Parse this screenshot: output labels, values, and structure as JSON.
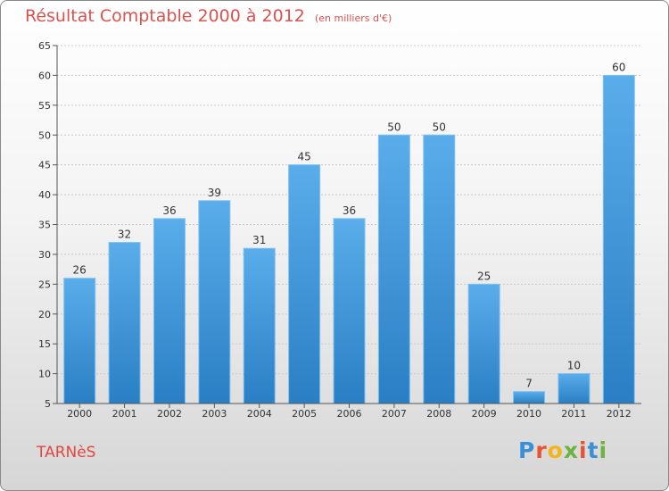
{
  "title": "Résultat Comptable 2000 à 2012",
  "subtitle": "(en milliers d'€)",
  "place": "TARNèS",
  "logo": {
    "text": "Proxiti",
    "letters": [
      "P",
      "r",
      "o",
      "x",
      "i",
      "t",
      "i"
    ],
    "colors": [
      "#3a8fd6",
      "#e8542f",
      "#f2b51b",
      "#6cb33f",
      "#e8542f",
      "#3a8fd6",
      "#6cb33f"
    ]
  },
  "chart_data": {
    "type": "bar",
    "title": "Résultat Comptable 2000 à 2012",
    "subtitle": "(en milliers d'€)",
    "categories": [
      "2000",
      "2001",
      "2002",
      "2003",
      "2004",
      "2005",
      "2006",
      "2007",
      "2008",
      "2009",
      "2010",
      "2011",
      "2012"
    ],
    "values": [
      26,
      32,
      36,
      39,
      31,
      45,
      36,
      50,
      50,
      25,
      7,
      10,
      60
    ],
    "ylim": [
      5,
      65
    ],
    "yticks": [
      5,
      10,
      15,
      20,
      25,
      30,
      35,
      40,
      45,
      50,
      55,
      60,
      65
    ],
    "xlabel": "",
    "ylabel": "",
    "grid": true,
    "bar_color": "#3f97dc"
  }
}
